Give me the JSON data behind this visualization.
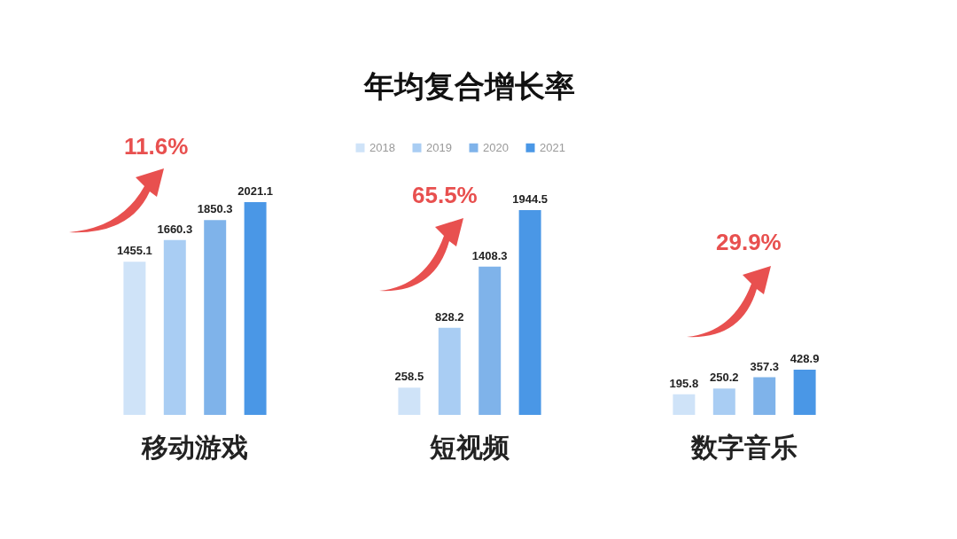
{
  "chart_data": {
    "type": "bar",
    "title": "年均复合增长率",
    "categories": [
      "移动游戏",
      "短视频",
      "数字音乐"
    ],
    "series": [
      {
        "name": "2018",
        "color": "#cfe3f8",
        "values": [
          1455.1,
          258.5,
          195.8
        ]
      },
      {
        "name": "2019",
        "color": "#a9cdf3",
        "values": [
          1660.3,
          828.2,
          250.2
        ]
      },
      {
        "name": "2020",
        "color": "#7fb3ea",
        "values": [
          1850.3,
          1408.3,
          357.3
        ]
      },
      {
        "name": "2021",
        "color": "#4a97e6",
        "values": [
          2021.1,
          1944.5,
          428.9
        ]
      }
    ],
    "data_labels": true,
    "legend": "top",
    "grid": false,
    "annotations": [
      "11.6%",
      "65.5%",
      "29.9%"
    ]
  }
}
